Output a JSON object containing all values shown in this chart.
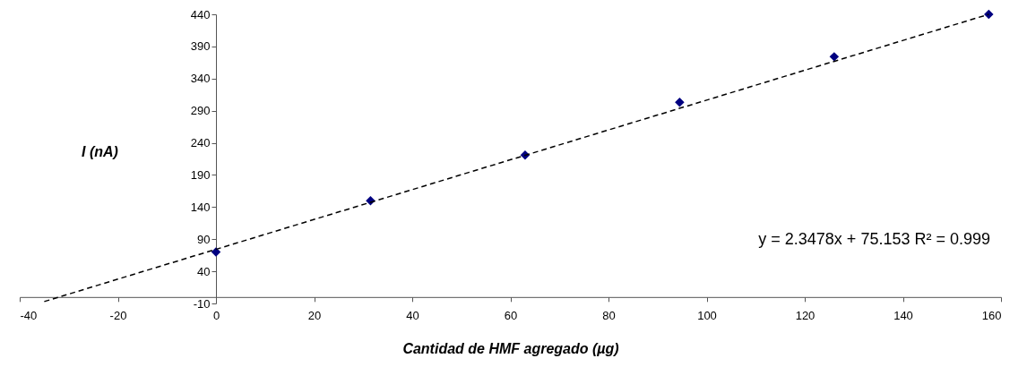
{
  "chart_data": {
    "type": "scatter",
    "xlabel": "Cantidad de HMF agregado (µg)",
    "ylabel": "I (nA)",
    "x": [
      0,
      31.5,
      63,
      94.5,
      126,
      157.5
    ],
    "series": [
      {
        "color": "#000080",
        "marker": "diamond",
        "values": [
          70,
          150,
          221,
          303,
          374,
          440
        ]
      },
      {
        "type": "line",
        "color": "#000000",
        "line_style": "dashed",
        "marker": "none",
        "x": [
          -35,
          157.5
        ],
        "values": [
          -7,
          440
        ]
      }
    ],
    "xlim": [
      -40,
      160
    ],
    "xticks": [
      -40,
      -20,
      0,
      20,
      40,
      60,
      80,
      100,
      120,
      140,
      160
    ],
    "ylim": [
      -10,
      440
    ],
    "yticks": [
      -10,
      40,
      90,
      140,
      190,
      240,
      290,
      340,
      390,
      440
    ],
    "grid": false,
    "annotations": [
      "y = 2.3478x + 75.153  R² = 0.999"
    ]
  }
}
